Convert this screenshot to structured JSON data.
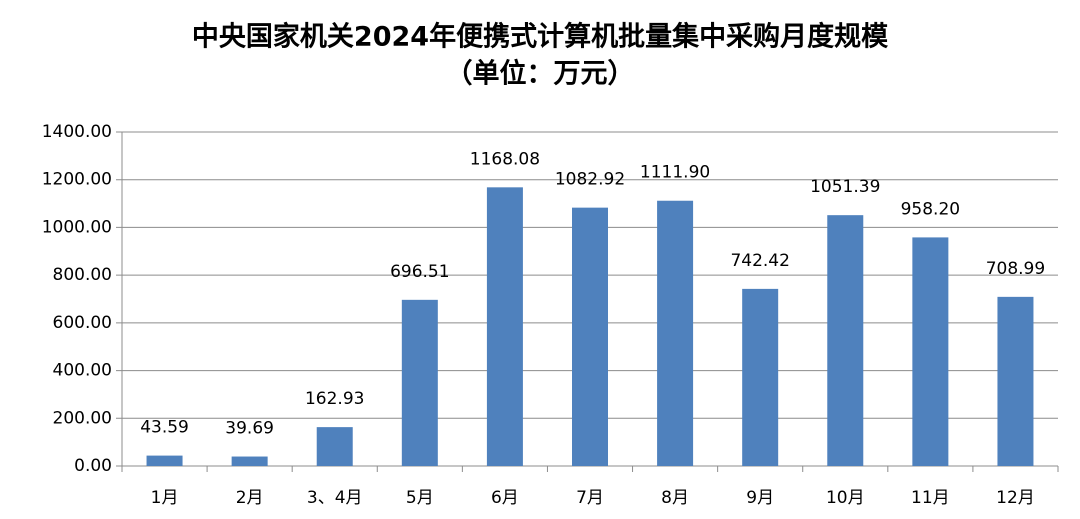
{
  "chart_data": {
    "type": "bar",
    "title": "中央国家机关2024年便携式计算机批量集中采购月度规模",
    "subtitle": "（单位：万元）",
    "categories": [
      "1月",
      "2月",
      "3、4月",
      "5月",
      "6月",
      "7月",
      "8月",
      "9月",
      "10月",
      "11月",
      "12月"
    ],
    "values": [
      43.59,
      39.69,
      162.93,
      696.51,
      1168.08,
      1082.92,
      1111.9,
      742.42,
      1051.39,
      958.2,
      708.99
    ],
    "value_labels": [
      "43.59",
      "39.69",
      "162.93",
      "696.51",
      "1168.08",
      "1082.92",
      "1111.90",
      "742.42",
      "1051.39",
      "958.20",
      "708.99"
    ],
    "color": "#4f81bd",
    "ylim": [
      0,
      1400
    ],
    "yticks": [
      {
        "value": 0,
        "label": "0.00"
      },
      {
        "value": 200,
        "label": "200.00"
      },
      {
        "value": 400,
        "label": "400.00"
      },
      {
        "value": 600,
        "label": "600.00"
      },
      {
        "value": 800,
        "label": "800.00"
      },
      {
        "value": 1000,
        "label": "1000.00"
      },
      {
        "value": 1200,
        "label": "1200.00"
      },
      {
        "value": 1400,
        "label": "1400.00"
      }
    ],
    "grid": true
  }
}
